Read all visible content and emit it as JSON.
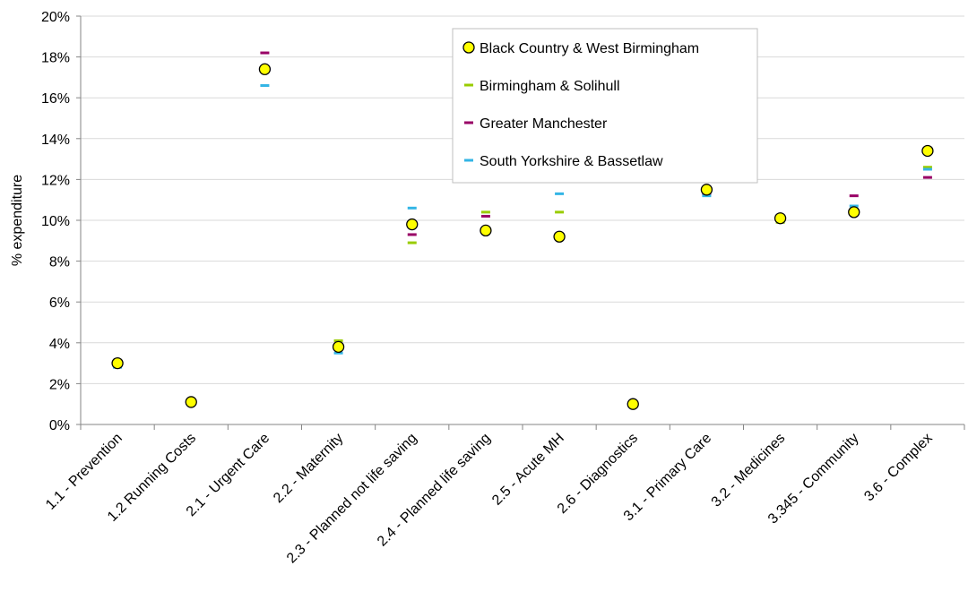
{
  "chart_data": {
    "type": "scatter",
    "title": "",
    "xlabel": "",
    "ylabel": "% expenditure",
    "ylim": [
      0,
      20
    ],
    "y_ticks": [
      "0%",
      "2%",
      "4%",
      "6%",
      "8%",
      "10%",
      "12%",
      "14%",
      "16%",
      "18%",
      "20%"
    ],
    "y_tick_values": [
      0,
      2,
      4,
      6,
      8,
      10,
      12,
      14,
      16,
      18,
      20
    ],
    "grid": "horizontal",
    "legend_position": "top-center",
    "categories": [
      "1.1 - Prevention",
      "1.2 Running Costs",
      "2.1 - Urgent Care",
      "2.2 - Maternity",
      "2.3 - Planned not life saving",
      "2.4 - Planned life saving",
      "2.5 - Acute MH",
      "2.6 - Diagnostics",
      "3.1 - Primary Care",
      "3.2 - Medicines",
      "3.345 - Community",
      "3.6 - Complex"
    ],
    "series": [
      {
        "name": "Birmingham & Solihull",
        "marker": "dash",
        "color": "#99cc00",
        "values": [
          2.9,
          1.1,
          17.5,
          4.1,
          8.9,
          10.4,
          10.4,
          1.0,
          11.3,
          9.9,
          10.5,
          12.6
        ]
      },
      {
        "name": "Greater Manchester",
        "marker": "dash",
        "color": "#990066",
        "values": [
          3.0,
          1.2,
          18.2,
          3.9,
          9.3,
          10.2,
          9.1,
          1.0,
          11.3,
          10.0,
          11.2,
          12.1
        ]
      },
      {
        "name": "South Yorkshire & Bassetlaw",
        "marker": "dash",
        "color": "#33b5e5",
        "values": [
          2.8,
          1.1,
          16.6,
          3.5,
          10.6,
          9.5,
          11.3,
          0.9,
          11.2,
          10.2,
          10.7,
          12.5
        ]
      },
      {
        "name": "Black Country & West Birmingham",
        "marker": "circle",
        "color": "#ffff00",
        "stroke": "#000000",
        "values": [
          3.0,
          1.1,
          17.4,
          3.8,
          9.8,
          9.5,
          9.2,
          1.0,
          11.5,
          10.1,
          10.4,
          13.4
        ]
      }
    ],
    "legend_order": [
      3,
      0,
      1,
      2
    ]
  }
}
